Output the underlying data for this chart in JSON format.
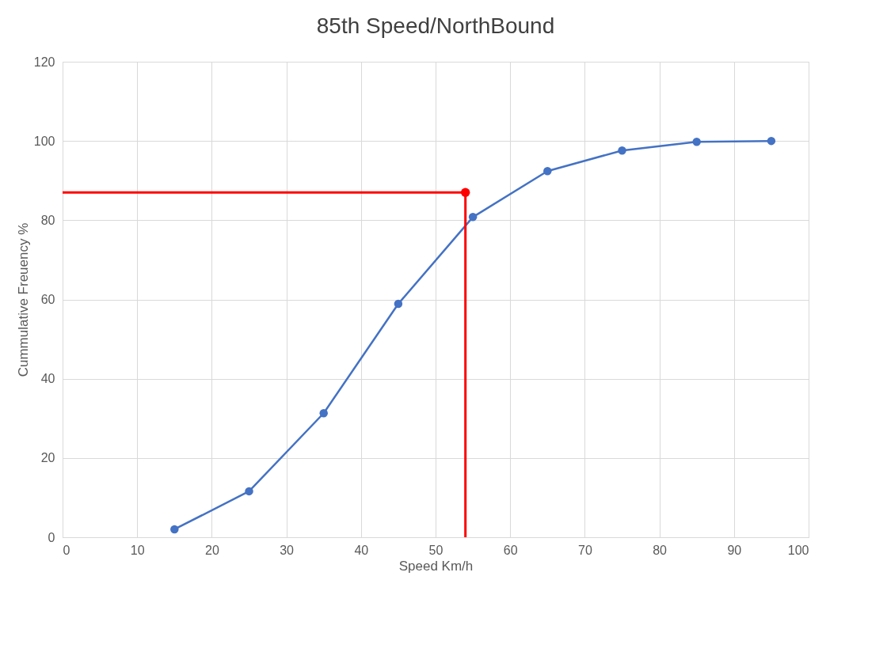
{
  "chart_data": {
    "type": "line",
    "title": "85th Speed/NorthBound",
    "xlabel": "Speed Km/h",
    "ylabel": "Cummulative Freuency %",
    "xlim": [
      0,
      100
    ],
    "xticks": [
      0,
      10,
      20,
      30,
      40,
      50,
      60,
      70,
      80,
      90,
      100
    ],
    "ylim": [
      0,
      120
    ],
    "yticks": [
      0,
      20,
      40,
      60,
      80,
      100,
      120
    ],
    "grid": true,
    "marker": "circle",
    "line_style": "solid",
    "series": [
      {
        "color": "#4472c4",
        "x": [
          15,
          25,
          35,
          45,
          55,
          65,
          75,
          85,
          95
        ],
        "values": [
          2.0,
          11.6,
          31.3,
          58.9,
          80.8,
          92.4,
          97.6,
          99.8,
          100
        ]
      },
      {
        "color": "#ff0000",
        "marker": "none",
        "x": [
          54,
          54,
          0
        ],
        "values": [
          0,
          87,
          87
        ]
      },
      {
        "type": "scatter",
        "color": "#ff0000",
        "x": [
          54
        ],
        "values": [
          87
        ]
      }
    ]
  }
}
